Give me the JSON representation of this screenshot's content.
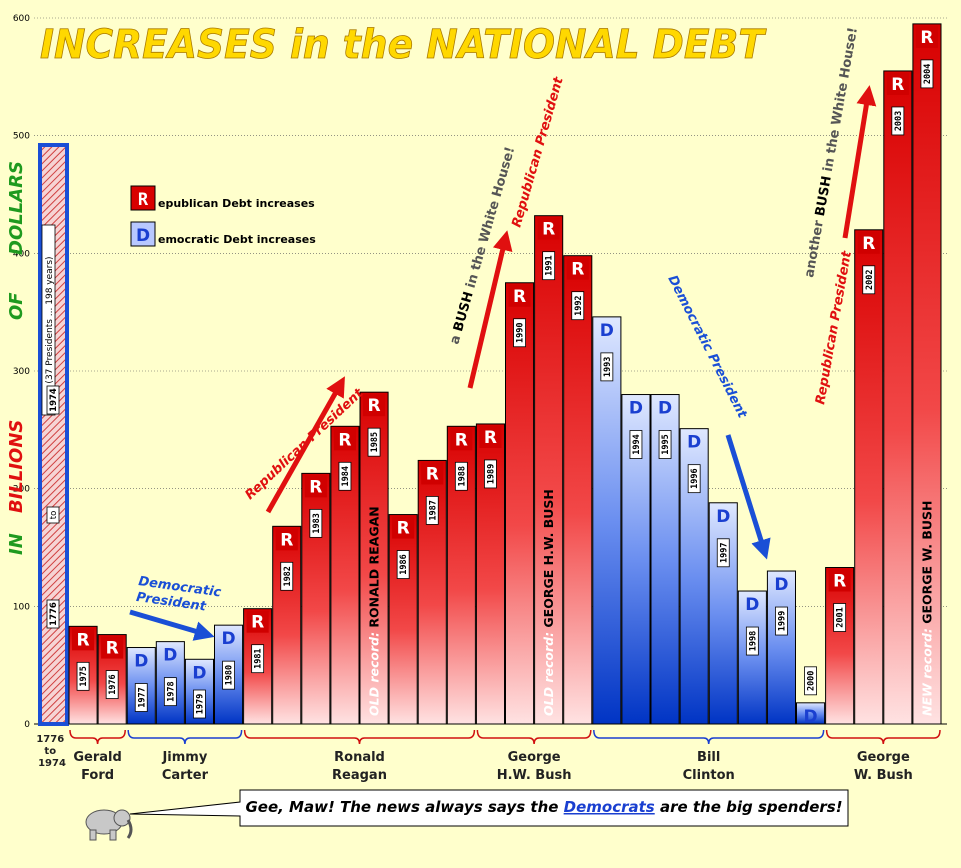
{
  "chart_data": {
    "type": "bar",
    "title": "INCREASES in the NATIONAL DEBT",
    "ylabel_words": [
      "IN",
      "BILLIONS",
      "OF",
      "DOLLARS"
    ],
    "ylim": [
      0,
      600
    ],
    "yticks": [
      "0",
      "100",
      "200",
      "300",
      "400",
      "500",
      "600"
    ],
    "grid": true,
    "legend": {
      "position": "upper-left",
      "entries": [
        {
          "letter": "R",
          "rest": "epublican Debt increases",
          "party": "R"
        },
        {
          "letter": "D",
          "rest": "emocratic Debt increases",
          "party": "D"
        }
      ]
    },
    "first_bar": {
      "value": 490,
      "labels": [
        "(37 Presidents ... 198 years)",
        "1974",
        "to",
        "1776"
      ],
      "xlabel_lines": [
        "1776",
        "to",
        "1974"
      ]
    },
    "bars": [
      {
        "year": "1975",
        "value": 83,
        "party": "R"
      },
      {
        "year": "1976",
        "value": 76,
        "party": "R"
      },
      {
        "year": "1977",
        "value": 65,
        "party": "D"
      },
      {
        "year": "1978",
        "value": 70,
        "party": "D"
      },
      {
        "year": "1979",
        "value": 55,
        "party": "D"
      },
      {
        "year": "1980",
        "value": 84,
        "party": "D"
      },
      {
        "year": "1981",
        "value": 98,
        "party": "R"
      },
      {
        "year": "1982",
        "value": 168,
        "party": "R"
      },
      {
        "year": "1983",
        "value": 213,
        "party": "R"
      },
      {
        "year": "1984",
        "value": 253,
        "party": "R"
      },
      {
        "year": "1985",
        "value": 282,
        "party": "R"
      },
      {
        "year": "1986",
        "value": 178,
        "party": "R"
      },
      {
        "year": "1987",
        "value": 224,
        "party": "R"
      },
      {
        "year": "1988",
        "value": 253,
        "party": "R"
      },
      {
        "year": "1989",
        "value": 255,
        "party": "R"
      },
      {
        "year": "1990",
        "value": 375,
        "party": "R"
      },
      {
        "year": "1991",
        "value": 432,
        "party": "R"
      },
      {
        "year": "1992",
        "value": 398,
        "party": "R"
      },
      {
        "year": "1993",
        "value": 346,
        "party": "D"
      },
      {
        "year": "1994",
        "value": 280,
        "party": "D"
      },
      {
        "year": "1995",
        "value": 280,
        "party": "D"
      },
      {
        "year": "1996",
        "value": 251,
        "party": "D"
      },
      {
        "year": "1997",
        "value": 188,
        "party": "D"
      },
      {
        "year": "1998",
        "value": 113,
        "party": "D"
      },
      {
        "year": "1999",
        "value": 130,
        "party": "D"
      },
      {
        "year": "2000",
        "value": 18,
        "party": "D"
      },
      {
        "year": "2001",
        "value": 133,
        "party": "R"
      },
      {
        "year": "2002",
        "value": 420,
        "party": "R"
      },
      {
        "year": "2003",
        "value": 555,
        "party": "R"
      },
      {
        "year": "2004",
        "value": 595,
        "party": "R"
      }
    ],
    "presidents": [
      {
        "lines": [
          "Gerald",
          "Ford"
        ],
        "from": 0,
        "to": 1,
        "party": "R"
      },
      {
        "lines": [
          "Jimmy",
          "Carter"
        ],
        "from": 2,
        "to": 5,
        "party": "D"
      },
      {
        "lines": [
          "Ronald",
          "Reagan"
        ],
        "from": 6,
        "to": 13,
        "party": "R"
      },
      {
        "lines": [
          "George",
          "H.W. Bush"
        ],
        "from": 14,
        "to": 17,
        "party": "R"
      },
      {
        "lines": [
          "Bill",
          "Clinton"
        ],
        "from": 18,
        "to": 25,
        "party": "D"
      },
      {
        "lines": [
          "George",
          "W. Bush"
        ],
        "from": 26,
        "to": 29,
        "party": "R"
      }
    ],
    "bar_annotations": [
      {
        "text": "OLD record:",
        "bold": "RONALD REAGAN",
        "bar": 10
      },
      {
        "text": "OLD record:",
        "bold": "GEORGE H.W. BUSH",
        "bar": 16
      },
      {
        "text": "NEW record:",
        "bold": "GEORGE W. BUSH",
        "bar": 29
      }
    ],
    "annotations": [
      {
        "id": "carter",
        "lines": [
          "Democratic",
          "President"
        ],
        "color": "#1a4fd6"
      },
      {
        "id": "reagan",
        "text": "Republican President",
        "color": "#e01010"
      },
      {
        "id": "bush1-gray",
        "pre": "a",
        "bold": "BUSH",
        "post": "in the White House!",
        "color": "#555"
      },
      {
        "id": "bush1-red",
        "text": "Republican President",
        "color": "#e01010"
      },
      {
        "id": "clinton",
        "text": "Democratic President",
        "color": "#1a4fd6"
      },
      {
        "id": "bush2-gray",
        "pre": "another",
        "bold": "BUSH",
        "post": "in the White House!",
        "color": "#555"
      },
      {
        "id": "bush2-red",
        "text": "Republican President",
        "color": "#e01010"
      }
    ],
    "footnote": {
      "pre": "Gee, Maw! The news always says the ",
      "link": "Democrats",
      "post": " are the big spenders!"
    }
  },
  "colors": {
    "rep_dark": "#d80000",
    "rep_light": "#ffe0e0",
    "dem_dark": "#0038c8",
    "dem_light": "#dde6ff",
    "title": "#ffd800",
    "green": "#1f9a1f",
    "red": "#e01010",
    "blue": "#1a4fd6",
    "background": "#ffffcc"
  }
}
